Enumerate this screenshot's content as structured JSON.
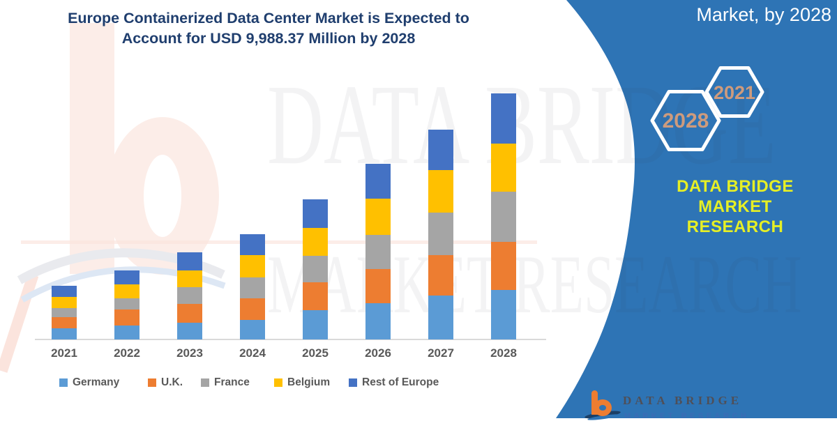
{
  "title": {
    "line1": "Europe Containerized Data Center Market is Expected to",
    "line2": "Account for USD 9,988.37 Million by 2028",
    "color": "#1F3E6E"
  },
  "chart_data": {
    "type": "bar",
    "stacked": true,
    "title": "Europe Containerized Data Center Market is Expected to Account for USD 9,988.37 Million by 2028",
    "unit": "USD Million",
    "categories": [
      "2021",
      "2022",
      "2023",
      "2024",
      "2025",
      "2026",
      "2027",
      "2028"
    ],
    "series": [
      {
        "name": "Germany",
        "color": "#5B9BD5",
        "values": [
          455,
          565,
          680,
          790,
          1185,
          1470,
          1780,
          2010
        ]
      },
      {
        "name": "U.K.",
        "color": "#ED7D31",
        "values": [
          450,
          650,
          765,
          875,
          1130,
          1385,
          1640,
          1955
        ]
      },
      {
        "name": "France",
        "color": "#A5A5A5",
        "values": [
          370,
          455,
          680,
          850,
          1075,
          1385,
          1725,
          2035
        ]
      },
      {
        "name": "Belgium",
        "color": "#FFC000",
        "values": [
          455,
          565,
          680,
          905,
          1130,
          1470,
          1725,
          1950
        ]
      },
      {
        "name": "Rest of Europe",
        "color": "#4472C4",
        "values": [
          450,
          565,
          735,
          850,
          1165,
          1420,
          1645,
          2038.37
        ]
      }
    ],
    "totals": [
      2180,
      2800,
      3540,
      4270,
      5685,
      7130,
      8515,
      9988.37
    ],
    "value_2028_label": "USD 9,988.37 Million",
    "xlabel": "",
    "ylabel": "",
    "y_axis_visible": false,
    "gridlines": false,
    "legend_position": "bottom"
  },
  "banner": {
    "color": "#2E74B5",
    "top_label": "Market, by 2028",
    "hexagons": [
      {
        "label": "2028"
      },
      {
        "label": "2021"
      }
    ],
    "hex_label_color": "#CE9B7D",
    "brand_line1": "DATA BRIDGE MARKET",
    "brand_line2": "RESEARCH",
    "brand_color": "#E6EF25"
  },
  "watermark": {
    "line1": "DATA BRIDGE",
    "line2": "MARKET RESEARCH"
  },
  "footer_logo": {
    "brand": "DATA BRIDGE",
    "subtitle": "MARKET RESEARCH"
  }
}
